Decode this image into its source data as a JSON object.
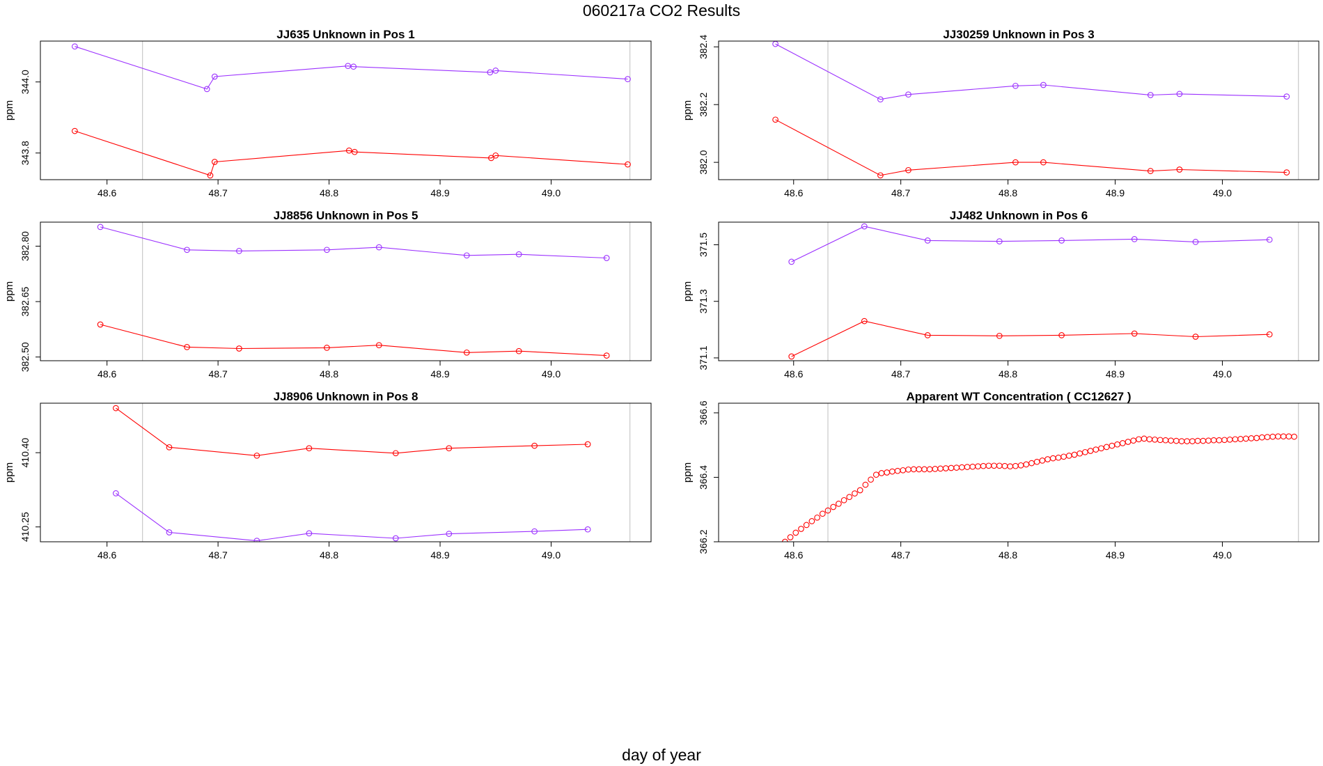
{
  "page_title": "060217a  CO2 Results",
  "x_axis_caption": "day of year",
  "colors": {
    "purple": "#9b30ff",
    "red": "#ff0000",
    "vline": "#bebebe",
    "frame": "#000000"
  },
  "chart_data": [
    {
      "type": "line",
      "title": "JJ635    Unknown in Pos 1",
      "xlabel": "",
      "ylabel": "ppm",
      "xlim": [
        48.54,
        49.09
      ],
      "ylim": [
        343.725,
        344.115
      ],
      "xticks": [
        "48.6",
        "48.7",
        "48.8",
        "48.9",
        "49.0"
      ],
      "yticks": [
        "343.8",
        "344.0"
      ],
      "vlines": [
        48.632,
        49.071
      ],
      "series": [
        {
          "name": "purple",
          "color": "#9b30ff",
          "x": [
            48.571,
            48.69,
            48.697,
            48.817,
            48.822,
            48.945,
            48.95,
            49.069
          ],
          "y": [
            344.1,
            343.98,
            344.015,
            344.045,
            344.043,
            344.027,
            344.032,
            344.008
          ]
        },
        {
          "name": "red",
          "color": "#ff0000",
          "x": [
            48.571,
            48.693,
            48.697,
            48.818,
            48.823,
            48.946,
            48.95,
            49.069
          ],
          "y": [
            343.862,
            343.737,
            343.775,
            343.807,
            343.803,
            343.786,
            343.793,
            343.768
          ]
        }
      ]
    },
    {
      "type": "line",
      "title": "JJ30259    Unknown in Pos 3",
      "xlabel": "",
      "ylabel": "ppm",
      "xlim": [
        48.53,
        49.09
      ],
      "ylim": [
        381.94,
        382.42
      ],
      "xticks": [
        "48.6",
        "48.7",
        "48.8",
        "48.9",
        "49.0"
      ],
      "yticks": [
        "382.0",
        "382.2",
        "382.4"
      ],
      "vlines": [
        48.632,
        49.071
      ],
      "series": [
        {
          "name": "purple",
          "color": "#9b30ff",
          "x": [
            48.583,
            48.681,
            48.707,
            48.807,
            48.833,
            48.933,
            48.96,
            49.06
          ],
          "y": [
            382.41,
            382.218,
            382.235,
            382.265,
            382.268,
            382.233,
            382.237,
            382.228
          ]
        },
        {
          "name": "red",
          "color": "#ff0000",
          "x": [
            48.583,
            48.681,
            48.707,
            48.807,
            48.833,
            48.933,
            48.96,
            49.06
          ],
          "y": [
            382.148,
            381.955,
            381.973,
            382.0,
            382.0,
            381.97,
            381.975,
            381.965
          ]
        }
      ]
    },
    {
      "type": "line",
      "title": "JJ8856    Unknown in Pos 5",
      "xlabel": "",
      "ylabel": "ppm",
      "xlim": [
        48.54,
        49.09
      ],
      "ylim": [
        382.49,
        382.865
      ],
      "xticks": [
        "48.6",
        "48.7",
        "48.8",
        "48.9",
        "49.0"
      ],
      "yticks": [
        "382.50",
        "382.65",
        "382.80"
      ],
      "vlines": [
        48.632,
        49.071
      ],
      "series": [
        {
          "name": "purple",
          "color": "#9b30ff",
          "x": [
            48.594,
            48.672,
            48.719,
            48.798,
            48.845,
            48.924,
            48.971,
            49.05
          ],
          "y": [
            382.852,
            382.79,
            382.787,
            382.79,
            382.797,
            382.775,
            382.778,
            382.768
          ]
        },
        {
          "name": "red",
          "color": "#ff0000",
          "x": [
            48.594,
            48.672,
            48.719,
            48.798,
            48.845,
            48.924,
            48.971,
            49.05
          ],
          "y": [
            382.588,
            382.527,
            382.523,
            382.525,
            382.532,
            382.512,
            382.516,
            382.504
          ]
        }
      ]
    },
    {
      "type": "line",
      "title": "JJ482    Unknown in Pos 6",
      "xlabel": "",
      "ylabel": "ppm",
      "xlim": [
        48.53,
        49.09
      ],
      "ylim": [
        371.09,
        371.58
      ],
      "xticks": [
        "48.6",
        "48.7",
        "48.8",
        "48.9",
        "49.0"
      ],
      "yticks": [
        "371.1",
        "371.3",
        "371.5"
      ],
      "vlines": [
        48.632,
        49.071
      ],
      "series": [
        {
          "name": "purple",
          "color": "#9b30ff",
          "x": [
            48.598,
            48.666,
            48.725,
            48.792,
            48.85,
            48.918,
            48.975,
            49.044
          ],
          "y": [
            371.44,
            371.565,
            371.515,
            371.512,
            371.515,
            371.52,
            371.51,
            371.518
          ]
        },
        {
          "name": "red",
          "color": "#ff0000",
          "x": [
            48.598,
            48.666,
            48.725,
            48.792,
            48.85,
            48.918,
            48.975,
            49.044
          ],
          "y": [
            371.105,
            371.23,
            371.18,
            371.178,
            371.18,
            371.186,
            371.175,
            371.183
          ]
        }
      ]
    },
    {
      "type": "line",
      "title": "JJ8906    Unknown in Pos 8",
      "xlabel": "",
      "ylabel": "ppm",
      "xlim": [
        48.54,
        49.09
      ],
      "ylim": [
        410.22,
        410.5
      ],
      "xticks": [
        "48.6",
        "48.7",
        "48.8",
        "48.9",
        "49.0"
      ],
      "yticks": [
        "410.25",
        "410.40"
      ],
      "vlines": [
        48.632,
        49.071
      ],
      "series": [
        {
          "name": "red",
          "color": "#ff0000",
          "x": [
            48.608,
            48.656,
            48.735,
            48.782,
            48.86,
            48.908,
            48.985,
            49.033
          ],
          "y": [
            410.49,
            410.411,
            410.394,
            410.409,
            410.399,
            410.409,
            410.414,
            410.417
          ]
        },
        {
          "name": "purple",
          "color": "#9b30ff",
          "x": [
            48.608,
            48.656,
            48.735,
            48.782,
            48.86,
            48.908,
            48.985,
            49.033
          ],
          "y": [
            410.318,
            410.239,
            410.222,
            410.237,
            410.227,
            410.236,
            410.241,
            410.245
          ]
        }
      ]
    },
    {
      "type": "scatter",
      "title": "Apparent WT Concentration ( CC12627 )",
      "xlabel": "",
      "ylabel": "ppm",
      "xlim": [
        48.53,
        49.09
      ],
      "ylim": [
        366.2,
        366.63
      ],
      "xticks": [
        "48.6",
        "48.7",
        "48.8",
        "48.9",
        "49.0"
      ],
      "yticks": [
        "366.2",
        "366.4",
        "366.6"
      ],
      "vlines": [
        48.632,
        49.071
      ],
      "series": [
        {
          "name": "red",
          "color": "#ff0000",
          "x": [
            48.592,
            48.597,
            48.602,
            48.607,
            48.612,
            48.617,
            48.622,
            48.627,
            48.632,
            48.637,
            48.642,
            48.647,
            48.652,
            48.657,
            48.662,
            48.667,
            48.672,
            48.677,
            48.682,
            48.687,
            48.692,
            48.697,
            48.702,
            48.707,
            48.712,
            48.717,
            48.722,
            48.727,
            48.732,
            48.737,
            48.742,
            48.747,
            48.752,
            48.757,
            48.762,
            48.767,
            48.772,
            48.777,
            48.782,
            48.787,
            48.792,
            48.797,
            48.802,
            48.807,
            48.812,
            48.817,
            48.822,
            48.827,
            48.832,
            48.837,
            48.842,
            48.847,
            48.852,
            48.857,
            48.862,
            48.867,
            48.872,
            48.877,
            48.882,
            48.887,
            48.892,
            48.897,
            48.902,
            48.907,
            48.912,
            48.917,
            48.922,
            48.927,
            48.932,
            48.937,
            48.942,
            48.947,
            48.952,
            48.957,
            48.962,
            48.967,
            48.972,
            48.977,
            48.982,
            48.987,
            48.992,
            48.997,
            49.002,
            49.007,
            49.012,
            49.017,
            49.022,
            49.027,
            49.032,
            49.037,
            49.042,
            49.047,
            49.052,
            49.057,
            49.062,
            49.067
          ],
          "y": [
            366.2,
            366.214,
            366.228,
            366.24,
            366.252,
            366.264,
            366.275,
            366.287,
            366.297,
            366.308,
            366.318,
            366.329,
            366.339,
            366.35,
            366.36,
            366.377,
            366.393,
            366.408,
            366.413,
            366.415,
            366.418,
            366.42,
            366.422,
            366.424,
            366.425,
            366.425,
            366.425,
            366.425,
            366.426,
            366.427,
            366.428,
            366.429,
            366.43,
            366.431,
            366.432,
            366.433,
            366.434,
            366.435,
            366.436,
            366.436,
            366.436,
            366.435,
            366.434,
            366.435,
            366.437,
            366.44,
            366.444,
            366.448,
            366.452,
            366.456,
            366.459,
            366.461,
            366.464,
            366.467,
            366.47,
            366.474,
            366.478,
            366.482,
            366.486,
            366.49,
            366.494,
            366.498,
            366.502,
            366.506,
            366.51,
            366.514,
            366.518,
            366.52,
            366.518,
            366.517,
            366.516,
            366.515,
            366.514,
            366.513,
            366.512,
            366.512,
            366.512,
            366.513,
            366.513,
            366.514,
            366.515,
            366.515,
            366.516,
            366.517,
            366.518,
            366.519,
            366.52,
            366.521,
            366.522,
            366.524,
            366.525,
            366.526,
            366.527,
            366.527,
            366.527,
            366.526
          ]
        }
      ]
    }
  ]
}
